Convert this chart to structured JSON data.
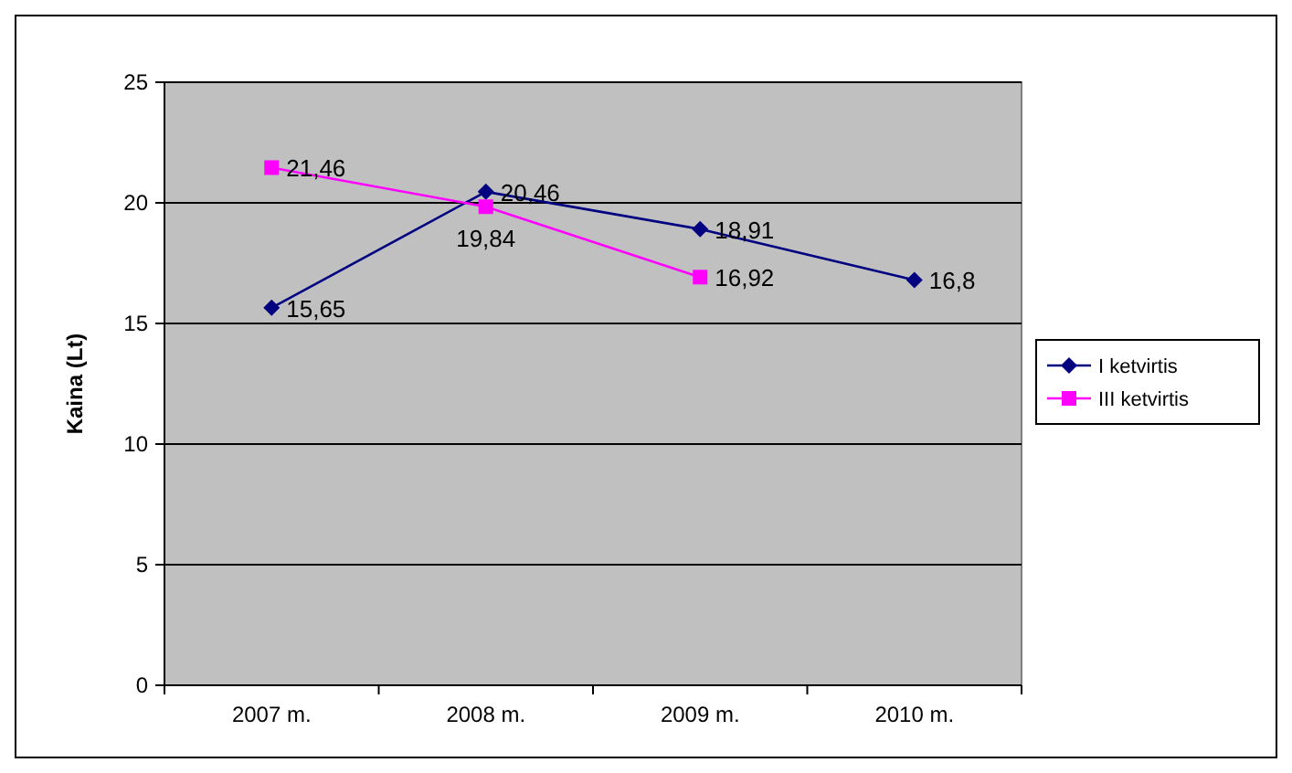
{
  "chart_data": {
    "type": "line",
    "ylabel": "Kaina (Lt)",
    "categories": [
      "2007 m.",
      "2008 m.",
      "2009 m.",
      "2010 m."
    ],
    "ylim": [
      0,
      25
    ],
    "yticks": [
      0,
      5,
      10,
      15,
      20,
      25
    ],
    "grid": "y",
    "legend": "right",
    "series": [
      {
        "name": "I ketvirtis",
        "color": "#000080",
        "marker": "diamond",
        "values": [
          15.65,
          20.46,
          18.91,
          16.8
        ],
        "value_labels": [
          "15,65",
          "20,46",
          "18,91",
          "16,8"
        ]
      },
      {
        "name": "III ketvirtis",
        "color": "#ff00ff",
        "marker": "square",
        "values": [
          21.46,
          19.84,
          16.92,
          null
        ],
        "value_labels": [
          "21,46",
          "19,84",
          "16,92",
          null
        ]
      }
    ]
  }
}
